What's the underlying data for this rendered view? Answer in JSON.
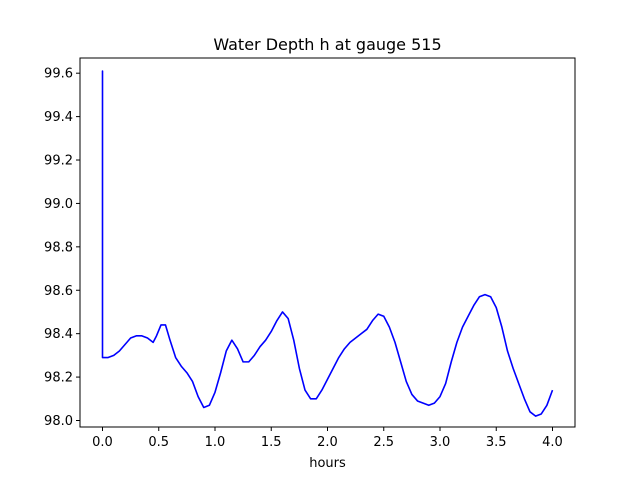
{
  "chart_data": {
    "type": "line",
    "title": "Water Depth h at gauge 515",
    "xlabel": "hours",
    "ylabel": "",
    "xlim": [
      -0.2,
      4.2
    ],
    "ylim": [
      97.97,
      99.67
    ],
    "xticks": [
      0.0,
      0.5,
      1.0,
      1.5,
      2.0,
      2.5,
      3.0,
      3.5,
      4.0
    ],
    "xtick_labels": [
      "0.0",
      "0.5",
      "1.0",
      "1.5",
      "2.0",
      "2.5",
      "3.0",
      "3.5",
      "4.0"
    ],
    "yticks": [
      98.0,
      98.2,
      98.4,
      98.6,
      98.8,
      99.0,
      99.2,
      99.4,
      99.6
    ],
    "ytick_labels": [
      "98.0",
      "98.2",
      "98.4",
      "98.6",
      "98.8",
      "99.0",
      "99.2",
      "99.4",
      "99.6"
    ],
    "grid": false,
    "series": [
      {
        "color": "#0000ff",
        "x": [
          0.0,
          0.0,
          0.0,
          0.05,
          0.1,
          0.15,
          0.2,
          0.25,
          0.3,
          0.35,
          0.4,
          0.45,
          0.48,
          0.52,
          0.56,
          0.6,
          0.65,
          0.7,
          0.75,
          0.8,
          0.85,
          0.9,
          0.95,
          1.0,
          1.05,
          1.1,
          1.15,
          1.2,
          1.25,
          1.3,
          1.35,
          1.4,
          1.45,
          1.5,
          1.55,
          1.6,
          1.65,
          1.7,
          1.75,
          1.8,
          1.85,
          1.9,
          1.95,
          2.0,
          2.05,
          2.1,
          2.15,
          2.2,
          2.25,
          2.3,
          2.35,
          2.4,
          2.45,
          2.5,
          2.55,
          2.6,
          2.65,
          2.7,
          2.75,
          2.8,
          2.85,
          2.9,
          2.95,
          3.0,
          3.05,
          3.1,
          3.15,
          3.2,
          3.25,
          3.3,
          3.35,
          3.4,
          3.45,
          3.5,
          3.55,
          3.6,
          3.65,
          3.7,
          3.75,
          3.8,
          3.85,
          3.9,
          3.95,
          4.0
        ],
        "y": [
          98.29,
          99.61,
          98.29,
          98.29,
          98.3,
          98.32,
          98.35,
          98.38,
          98.39,
          98.39,
          98.38,
          98.36,
          98.39,
          98.44,
          98.44,
          98.37,
          98.29,
          98.25,
          98.22,
          98.18,
          98.11,
          98.06,
          98.07,
          98.13,
          98.22,
          98.32,
          98.37,
          98.33,
          98.27,
          98.27,
          98.3,
          98.34,
          98.37,
          98.41,
          98.46,
          98.5,
          98.47,
          98.37,
          98.24,
          98.14,
          98.1,
          98.1,
          98.14,
          98.19,
          98.24,
          98.29,
          98.33,
          98.36,
          98.38,
          98.4,
          98.42,
          98.46,
          98.49,
          98.48,
          98.43,
          98.36,
          98.27,
          98.18,
          98.12,
          98.09,
          98.08,
          98.07,
          98.08,
          98.11,
          98.17,
          98.27,
          98.36,
          98.43,
          98.48,
          98.53,
          98.57,
          98.58,
          98.57,
          98.52,
          98.43,
          98.32,
          98.24,
          98.17,
          98.1,
          98.04,
          98.02,
          98.03,
          98.07,
          98.14
        ]
      }
    ]
  }
}
